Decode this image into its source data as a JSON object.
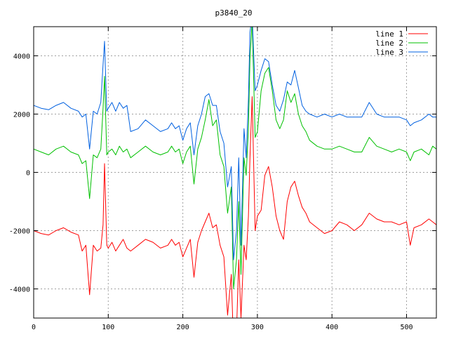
{
  "chart_data": {
    "type": "line",
    "title": "p3840_20",
    "xlabel": "",
    "ylabel": "",
    "xlim": [
      0,
      540
    ],
    "ylim": [
      -5000,
      5000
    ],
    "x_ticks": [
      0,
      100,
      200,
      300,
      400,
      500
    ],
    "y_ticks": [
      -4000,
      -2000,
      0,
      2000,
      4000
    ],
    "grid": true,
    "legend_position": "top-right",
    "series": [
      {
        "name": "line 1",
        "color": "#ff0000",
        "x": [
          0,
          10,
          20,
          30,
          40,
          50,
          60,
          65,
          70,
          75,
          80,
          85,
          90,
          93,
          95,
          98,
          100,
          105,
          110,
          115,
          120,
          125,
          130,
          140,
          150,
          160,
          170,
          180,
          185,
          190,
          195,
          200,
          205,
          210,
          215,
          220,
          225,
          230,
          235,
          240,
          245,
          250,
          255,
          260,
          265,
          268,
          272,
          275,
          278,
          282,
          285,
          288,
          290,
          293,
          297,
          300,
          305,
          310,
          315,
          320,
          325,
          330,
          335,
          340,
          345,
          350,
          355,
          360,
          365,
          370,
          380,
          390,
          400,
          410,
          420,
          430,
          440,
          450,
          460,
          470,
          480,
          490,
          500,
          505,
          510,
          520,
          530,
          535,
          540
        ],
        "y": [
          -2000,
          -2100,
          -2150,
          -2000,
          -1900,
          -2050,
          -2150,
          -2700,
          -2500,
          -4200,
          -2500,
          -2700,
          -2600,
          -1800,
          300,
          -2500,
          -2600,
          -2400,
          -2700,
          -2500,
          -2300,
          -2600,
          -2700,
          -2500,
          -2300,
          -2400,
          -2600,
          -2500,
          -2300,
          -2500,
          -2400,
          -2900,
          -2600,
          -2300,
          -3600,
          -2400,
          -2000,
          -1700,
          -1400,
          -1900,
          -1800,
          -2500,
          -2900,
          -4900,
          -3500,
          -6000,
          -5500,
          -3000,
          -5000,
          -2500,
          -3000,
          -1500,
          500,
          2600,
          -2000,
          -1500,
          -1300,
          -100,
          200,
          -500,
          -1500,
          -2000,
          -2300,
          -1000,
          -500,
          -300,
          -800,
          -1200,
          -1400,
          -1700,
          -1900,
          -2100,
          -2000,
          -1700,
          -1800,
          -2000,
          -1800,
          -1400,
          -1600,
          -1700,
          -1700,
          -1800,
          -1700,
          -2500,
          -1900,
          -1800,
          -1600,
          -1700,
          -1800
        ]
      },
      {
        "name": "line 2",
        "color": "#00c000",
        "x": [
          0,
          10,
          20,
          30,
          40,
          50,
          60,
          65,
          70,
          75,
          80,
          85,
          90,
          93,
          95,
          98,
          100,
          105,
          110,
          115,
          120,
          125,
          130,
          140,
          150,
          160,
          170,
          180,
          185,
          190,
          195,
          200,
          205,
          210,
          215,
          220,
          225,
          230,
          235,
          240,
          245,
          250,
          255,
          260,
          265,
          268,
          272,
          275,
          278,
          282,
          285,
          288,
          290,
          293,
          297,
          300,
          305,
          310,
          315,
          320,
          325,
          330,
          335,
          340,
          345,
          350,
          355,
          360,
          365,
          370,
          380,
          390,
          400,
          410,
          420,
          430,
          440,
          450,
          460,
          470,
          480,
          490,
          500,
          505,
          510,
          520,
          530,
          535,
          540
        ],
        "y": [
          800,
          700,
          600,
          800,
          900,
          700,
          600,
          300,
          400,
          -900,
          600,
          500,
          800,
          2200,
          3300,
          600,
          700,
          800,
          600,
          900,
          700,
          800,
          500,
          700,
          900,
          700,
          600,
          700,
          900,
          700,
          800,
          300,
          700,
          900,
          -400,
          800,
          1200,
          1800,
          2500,
          1600,
          1800,
          600,
          200,
          -1400,
          -500,
          -4000,
          -3000,
          -1000,
          -3500,
          500,
          -100,
          1500,
          3900,
          5200,
          1200,
          1400,
          2800,
          3400,
          3600,
          2800,
          1800,
          1500,
          1800,
          2800,
          2400,
          2700,
          2000,
          1600,
          1400,
          1100,
          900,
          800,
          800,
          900,
          800,
          700,
          700,
          1200,
          900,
          800,
          700,
          800,
          700,
          400,
          700,
          800,
          600,
          900,
          800
        ]
      },
      {
        "name": "line 3",
        "color": "#0060e0",
        "x": [
          0,
          10,
          20,
          30,
          40,
          50,
          60,
          65,
          70,
          75,
          80,
          85,
          90,
          93,
          95,
          98,
          100,
          105,
          110,
          115,
          120,
          125,
          130,
          140,
          150,
          160,
          170,
          180,
          185,
          190,
          195,
          200,
          205,
          210,
          215,
          220,
          225,
          230,
          235,
          240,
          245,
          250,
          255,
          260,
          265,
          268,
          272,
          275,
          278,
          282,
          285,
          288,
          290,
          293,
          297,
          300,
          305,
          310,
          315,
          320,
          325,
          330,
          335,
          340,
          345,
          350,
          355,
          360,
          365,
          370,
          380,
          390,
          400,
          410,
          420,
          430,
          440,
          450,
          460,
          470,
          480,
          490,
          500,
          505,
          510,
          520,
          530,
          535,
          540
        ],
        "y": [
          2300,
          2200,
          2150,
          2300,
          2400,
          2200,
          2100,
          1900,
          2000,
          800,
          2100,
          2000,
          2400,
          3700,
          4500,
          2100,
          2200,
          2400,
          2100,
          2400,
          2200,
          2300,
          1400,
          1500,
          1800,
          1600,
          1400,
          1500,
          1700,
          1500,
          1600,
          1100,
          1500,
          1700,
          600,
          1600,
          2000,
          2600,
          2700,
          2300,
          2300,
          1400,
          1000,
          -500,
          200,
          -3000,
          -2000,
          500,
          -2500,
          1500,
          500,
          2500,
          4800,
          5400,
          2800,
          3000,
          3500,
          3900,
          3800,
          3000,
          2300,
          2100,
          2500,
          3100,
          3000,
          3500,
          2900,
          2300,
          2100,
          2000,
          1900,
          2000,
          1900,
          2000,
          1900,
          1900,
          1900,
          2400,
          2000,
          1900,
          1900,
          1900,
          1800,
          1600,
          1700,
          1800,
          2000,
          1900,
          1900
        ]
      }
    ]
  }
}
